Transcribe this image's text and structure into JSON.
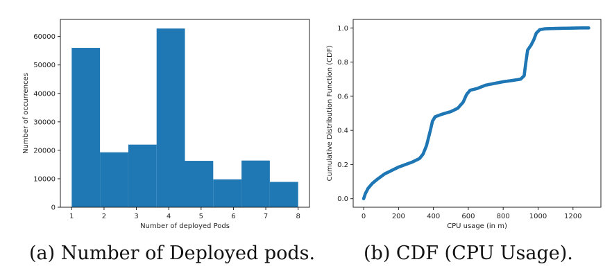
{
  "captions": {
    "left": "(a) Number of Deployed pods.",
    "right": "(b) CDF (CPU Usage)."
  },
  "colors": {
    "bar": "#1f77b4",
    "line": "#1f77b4",
    "axis": "#222222"
  },
  "chart_data": [
    {
      "type": "bar",
      "xlabel": "Number of deployed Pods",
      "ylabel": "Number of occurrences",
      "xlim": [
        0.65,
        8.35
      ],
      "ylim": [
        0,
        66000
      ],
      "xticks": [
        1,
        2,
        3,
        4,
        5,
        6,
        7,
        8
      ],
      "yticks": [
        0,
        10000,
        20000,
        30000,
        40000,
        50000,
        60000
      ],
      "bins": [
        {
          "x0": 1.0,
          "x1": 1.875,
          "value": 56000
        },
        {
          "x0": 1.875,
          "x1": 2.75,
          "value": 19300
        },
        {
          "x0": 2.75,
          "x1": 3.625,
          "value": 22000
        },
        {
          "x0": 3.625,
          "x1": 4.5,
          "value": 62800
        },
        {
          "x0": 4.5,
          "x1": 5.375,
          "value": 16300
        },
        {
          "x0": 5.375,
          "x1": 6.25,
          "value": 9800
        },
        {
          "x0": 6.25,
          "x1": 7.125,
          "value": 16400
        },
        {
          "x0": 7.125,
          "x1": 8.0,
          "value": 8900
        }
      ]
    },
    {
      "type": "scatter",
      "xlabel": "CPU usage (in m)",
      "ylabel": "Cumulative Distribution Function (CDF)",
      "xlim": [
        -60,
        1360
      ],
      "ylim": [
        -0.05,
        1.05
      ],
      "xticks": [
        0,
        200,
        400,
        600,
        800,
        1000,
        1200
      ],
      "yticks": [
        0.0,
        0.2,
        0.4,
        0.6,
        0.8,
        1.0
      ],
      "points": [
        [
          0,
          0.0
        ],
        [
          10,
          0.03
        ],
        [
          25,
          0.06
        ],
        [
          50,
          0.09
        ],
        [
          80,
          0.115
        ],
        [
          120,
          0.145
        ],
        [
          160,
          0.165
        ],
        [
          200,
          0.185
        ],
        [
          240,
          0.2
        ],
        [
          280,
          0.215
        ],
        [
          320,
          0.235
        ],
        [
          340,
          0.26
        ],
        [
          360,
          0.31
        ],
        [
          380,
          0.39
        ],
        [
          395,
          0.455
        ],
        [
          410,
          0.48
        ],
        [
          450,
          0.495
        ],
        [
          500,
          0.51
        ],
        [
          540,
          0.53
        ],
        [
          570,
          0.565
        ],
        [
          590,
          0.61
        ],
        [
          610,
          0.635
        ],
        [
          650,
          0.645
        ],
        [
          700,
          0.665
        ],
        [
          750,
          0.675
        ],
        [
          800,
          0.685
        ],
        [
          850,
          0.692
        ],
        [
          900,
          0.7
        ],
        [
          920,
          0.72
        ],
        [
          930,
          0.8
        ],
        [
          940,
          0.87
        ],
        [
          960,
          0.9
        ],
        [
          975,
          0.93
        ],
        [
          990,
          0.97
        ],
        [
          1010,
          0.99
        ],
        [
          1040,
          0.995
        ],
        [
          1100,
          0.997
        ],
        [
          1150,
          0.998
        ],
        [
          1200,
          0.999
        ],
        [
          1250,
          1.0
        ],
        [
          1290,
          1.0
        ]
      ]
    }
  ]
}
